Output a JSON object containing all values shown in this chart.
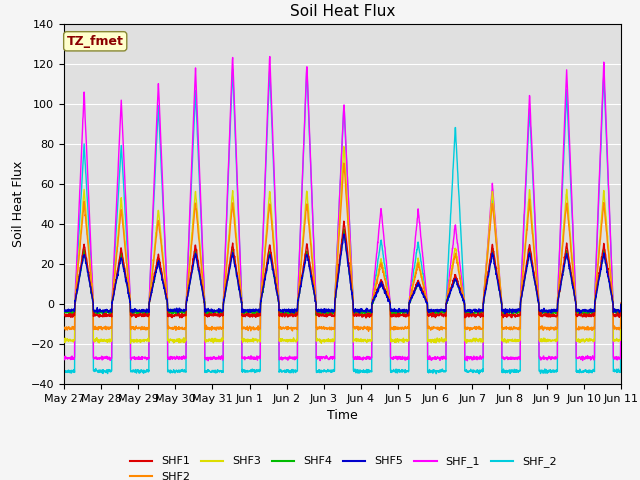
{
  "title": "Soil Heat Flux",
  "xlabel": "Time",
  "ylabel": "Soil Heat Flux",
  "ylim": [
    -40,
    140
  ],
  "yticks": [
    -40,
    -20,
    0,
    20,
    40,
    60,
    80,
    100,
    120,
    140
  ],
  "xtick_labels": [
    "May 27",
    "May 28",
    "May 29",
    "May 30",
    "May 31",
    "Jun 1",
    "Jun 2",
    "Jun 3",
    "Jun 4",
    "Jun 5",
    "Jun 6",
    "Jun 7",
    "Jun 8",
    "Jun 9",
    "Jun 10",
    "Jun 11"
  ],
  "series_colors": {
    "SHF1": "#dd0000",
    "SHF2": "#ff8800",
    "SHF3": "#dddd00",
    "SHF4": "#00bb00",
    "SHF5": "#0000cc",
    "SHF_1": "#ff00ff",
    "SHF_2": "#00ccdd"
  },
  "annotation_text": "TZ_fmet",
  "bg_color": "#e0e0e0",
  "title_fontsize": 11,
  "axis_label_fontsize": 9,
  "tick_fontsize": 8,
  "n_days": 15,
  "pts_per_day": 144,
  "day_peaks_shf1": [
    30,
    28,
    25,
    30,
    30,
    30,
    30,
    42,
    12,
    12,
    15,
    30,
    30,
    30,
    30
  ],
  "day_peaks_shf_1": [
    106,
    102,
    111,
    118,
    125,
    125,
    120,
    101,
    48,
    47,
    40,
    60,
    105,
    117,
    121
  ],
  "day_peaks_shf_2": [
    80,
    80,
    100,
    107,
    118,
    118,
    118,
    100,
    32,
    31,
    89,
    55,
    98,
    107,
    115
  ]
}
